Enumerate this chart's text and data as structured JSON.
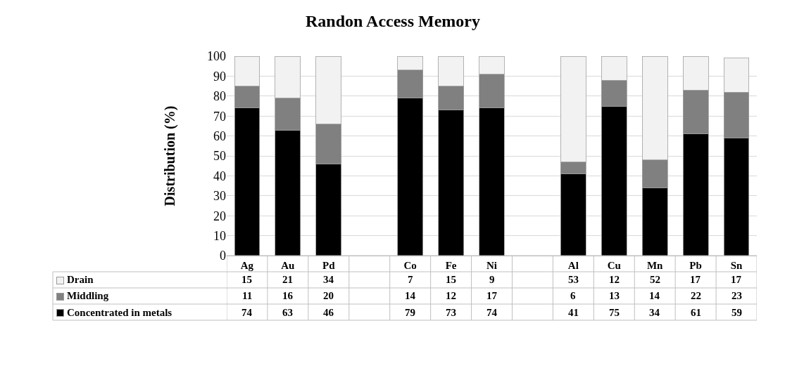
{
  "chart_data": {
    "type": "bar",
    "title": "Randon Access Memory",
    "ylabel": "Distribution (%)",
    "categories": [
      "Ag",
      "Au",
      "Pd",
      null,
      "Co",
      "Fe",
      "Ni",
      null,
      "Al",
      "Cu",
      "Mn",
      "Pb",
      "Sn"
    ],
    "series": [
      {
        "name": "Concentrated in metals",
        "color": "#000000",
        "values": [
          74,
          63,
          46,
          null,
          79,
          73,
          74,
          null,
          41,
          75,
          34,
          61,
          59
        ]
      },
      {
        "name": "Middling",
        "color": "#808080",
        "values": [
          11,
          16,
          20,
          null,
          14,
          12,
          17,
          null,
          6,
          13,
          14,
          22,
          23
        ]
      },
      {
        "name": "Drain",
        "color": "#f2f2f2",
        "values": [
          15,
          21,
          34,
          null,
          7,
          15,
          9,
          null,
          53,
          12,
          52,
          17,
          17
        ]
      }
    ],
    "stacked": true,
    "ylim": [
      0,
      100
    ],
    "yticks": [
      0,
      10,
      20,
      30,
      40,
      50,
      60,
      70,
      80,
      90,
      100
    ],
    "grid": "y",
    "legend": "bottom left",
    "data_labels": true
  }
}
